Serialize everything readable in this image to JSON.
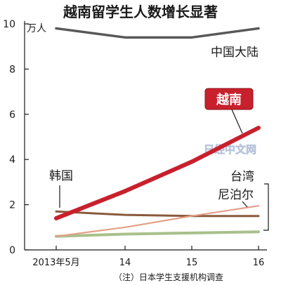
{
  "chart_data": {
    "type": "line",
    "title": "越南留学生人数增长显著",
    "unit_label": "万人",
    "x": [
      "2013年5月",
      "14",
      "15",
      "16"
    ],
    "ylim": [
      0,
      10
    ],
    "yticks": [
      0,
      2,
      4,
      6,
      8,
      10
    ],
    "grid": false,
    "series": [
      {
        "name": "中国大陆",
        "values": [
          9.8,
          9.4,
          9.4,
          9.8
        ],
        "color": "#585858"
      },
      {
        "name": "越南",
        "values": [
          1.4,
          2.6,
          3.9,
          5.4
        ],
        "color": "#c8202c",
        "highlight": true
      },
      {
        "name": "韩国",
        "values": [
          1.7,
          1.55,
          1.5,
          1.5
        ],
        "color": "#8a5a3c"
      },
      {
        "name": "台湾",
        "values": [
          0.6,
          0.7,
          0.75,
          0.8
        ],
        "color": "#a8c08a"
      },
      {
        "name": "尼泊尔",
        "values": [
          0.6,
          1.0,
          1.5,
          1.95
        ],
        "color": "#e4a088"
      }
    ],
    "note": "（注）日本学生支援机构调查",
    "watermark": "日经中文网"
  }
}
